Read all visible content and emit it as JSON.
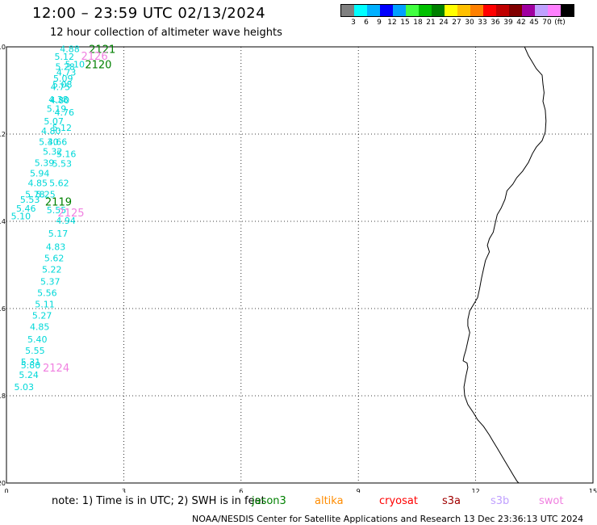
{
  "header": {
    "title": "12:00 – 23:59 UTC 02/13/2024",
    "subtitle": "12 hour collection of altimeter wave heights"
  },
  "legend": {
    "colors": [
      "#808080",
      "#00ffff",
      "#00b0ff",
      "#0000ff",
      "#00a0ff",
      "#40ff40",
      "#00c000",
      "#008000",
      "#ffff00",
      "#ffc000",
      "#ff8000",
      "#ff0000",
      "#c00000",
      "#800000",
      "#a000a0",
      "#c0a0ff",
      "#ff80ff",
      "#000000"
    ],
    "labels": [
      "3",
      "6",
      "9",
      "12",
      "15",
      "18",
      "21",
      "24",
      "27",
      "30",
      "33",
      "36",
      "39",
      "42",
      "45",
      "70",
      "(ft)"
    ]
  },
  "map": {
    "x_ticks": [
      "0",
      "3",
      "6",
      "9",
      "12",
      "15"
    ],
    "y_ticks": [
      "-10",
      "-12",
      "-14",
      "-16",
      "-18",
      "-20"
    ]
  },
  "observations": [
    {
      "lon": 1.62,
      "lat": -10.05,
      "swh": "4.88"
    },
    {
      "lon": 1.48,
      "lat": -10.22,
      "swh": "5.12"
    },
    {
      "lon": 1.75,
      "lat": -10.4,
      "swh": "5.10"
    },
    {
      "lon": 1.5,
      "lat": -10.45,
      "swh": "5.28"
    },
    {
      "lon": 1.53,
      "lat": -10.58,
      "swh": "4.73"
    },
    {
      "lon": 1.45,
      "lat": -10.72,
      "swh": "5.09"
    },
    {
      "lon": 1.43,
      "lat": -10.86,
      "swh": "5.08"
    },
    {
      "lon": 1.38,
      "lat": -10.92,
      "swh": "4.75"
    },
    {
      "lon": 1.33,
      "lat": -11.2,
      "swh": "4.38"
    },
    {
      "lon": 1.36,
      "lat": -11.22,
      "swh": "4.80"
    },
    {
      "lon": 1.28,
      "lat": -11.42,
      "swh": "5.19"
    },
    {
      "lon": 1.48,
      "lat": -11.5,
      "swh": "4.76"
    },
    {
      "lon": 1.21,
      "lat": -11.7,
      "swh": "5.07"
    },
    {
      "lon": 1.42,
      "lat": -11.85,
      "swh": "5.12"
    },
    {
      "lon": 1.14,
      "lat": -11.93,
      "swh": "4.80"
    },
    {
      "lon": 1.08,
      "lat": -12.18,
      "swh": "5.30"
    },
    {
      "lon": 1.3,
      "lat": -12.18,
      "swh": "4.66"
    },
    {
      "lon": 1.18,
      "lat": -12.4,
      "swh": "5.32"
    },
    {
      "lon": 1.53,
      "lat": -12.45,
      "swh": "5.16"
    },
    {
      "lon": 0.97,
      "lat": -12.66,
      "swh": "5.39"
    },
    {
      "lon": 1.42,
      "lat": -12.68,
      "swh": "5.53"
    },
    {
      "lon": 0.85,
      "lat": -12.9,
      "swh": "5.94"
    },
    {
      "lon": 0.8,
      "lat": -13.12,
      "swh": "4.85"
    },
    {
      "lon": 1.35,
      "lat": -13.12,
      "swh": "5.62"
    },
    {
      "lon": 0.73,
      "lat": -13.38,
      "swh": "5.78"
    },
    {
      "lon": 1.0,
      "lat": -13.38,
      "swh": "5.25"
    },
    {
      "lon": 0.6,
      "lat": -13.5,
      "swh": "5.53"
    },
    {
      "lon": 0.5,
      "lat": -13.7,
      "swh": "5.46"
    },
    {
      "lon": 0.37,
      "lat": -13.88,
      "swh": "5.10"
    },
    {
      "lon": 1.28,
      "lat": -13.74,
      "swh": "5.55"
    },
    {
      "lon": 1.52,
      "lat": -13.98,
      "swh": "4.94"
    },
    {
      "lon": 1.32,
      "lat": -14.28,
      "swh": "5.17"
    },
    {
      "lon": 1.26,
      "lat": -14.58,
      "swh": "4.83"
    },
    {
      "lon": 1.22,
      "lat": -14.84,
      "swh": "5.62"
    },
    {
      "lon": 1.16,
      "lat": -15.1,
      "swh": "5.22"
    },
    {
      "lon": 1.12,
      "lat": -15.38,
      "swh": "5.37"
    },
    {
      "lon": 1.04,
      "lat": -15.64,
      "swh": "5.56"
    },
    {
      "lon": 0.98,
      "lat": -15.9,
      "swh": "5.11"
    },
    {
      "lon": 0.91,
      "lat": -16.16,
      "swh": "5.27"
    },
    {
      "lon": 0.85,
      "lat": -16.42,
      "swh": "4.85"
    },
    {
      "lon": 0.79,
      "lat": -16.7,
      "swh": "5.40"
    },
    {
      "lon": 0.73,
      "lat": -16.96,
      "swh": "5.55"
    },
    {
      "lon": 0.62,
      "lat": -17.22,
      "swh": "5.31"
    },
    {
      "lon": 0.62,
      "lat": -17.3,
      "swh": "5.80"
    },
    {
      "lon": 0.57,
      "lat": -17.52,
      "swh": "5.24"
    },
    {
      "lon": 0.45,
      "lat": -17.8,
      "swh": "5.03"
    }
  ],
  "passes": [
    {
      "lon": 2.45,
      "lat": -10.05,
      "label": "2121",
      "color": "#008000"
    },
    {
      "lon": 2.25,
      "lat": -10.2,
      "label": "2126",
      "color": "#f080e0"
    },
    {
      "lon": 2.35,
      "lat": -10.4,
      "label": "2120",
      "color": "#008000"
    },
    {
      "lon": 1.33,
      "lat": -13.55,
      "label": "2119",
      "color": "#008000"
    },
    {
      "lon": 1.65,
      "lat": -13.8,
      "label": "2125",
      "color": "#f080e0"
    },
    {
      "lon": 1.27,
      "lat": -17.35,
      "label": "2124",
      "color": "#f080e0"
    }
  ],
  "coastline": [
    [
      13.25,
      -10.0
    ],
    [
      13.35,
      -10.2
    ],
    [
      13.45,
      -10.35
    ],
    [
      13.55,
      -10.5
    ],
    [
      13.7,
      -10.65
    ],
    [
      13.72,
      -10.85
    ],
    [
      13.75,
      -11.05
    ],
    [
      13.72,
      -11.25
    ],
    [
      13.78,
      -11.45
    ],
    [
      13.8,
      -11.7
    ],
    [
      13.78,
      -11.95
    ],
    [
      13.7,
      -12.15
    ],
    [
      13.55,
      -12.3
    ],
    [
      13.45,
      -12.45
    ],
    [
      13.35,
      -12.65
    ],
    [
      13.2,
      -12.85
    ],
    [
      13.05,
      -13.0
    ],
    [
      12.95,
      -13.15
    ],
    [
      12.8,
      -13.3
    ],
    [
      12.75,
      -13.5
    ],
    [
      12.65,
      -13.7
    ],
    [
      12.55,
      -13.85
    ],
    [
      12.5,
      -14.05
    ],
    [
      12.45,
      -14.25
    ],
    [
      12.35,
      -14.4
    ],
    [
      12.3,
      -14.55
    ],
    [
      12.35,
      -14.7
    ],
    [
      12.25,
      -14.9
    ],
    [
      12.2,
      -15.1
    ],
    [
      12.15,
      -15.3
    ],
    [
      12.1,
      -15.55
    ],
    [
      12.05,
      -15.75
    ],
    [
      11.95,
      -15.9
    ],
    [
      11.85,
      -16.05
    ],
    [
      11.8,
      -16.25
    ],
    [
      11.8,
      -16.4
    ],
    [
      11.85,
      -16.55
    ],
    [
      11.8,
      -16.75
    ],
    [
      11.75,
      -16.95
    ],
    [
      11.7,
      -17.1
    ],
    [
      11.68,
      -17.2
    ],
    [
      11.78,
      -17.25
    ],
    [
      11.8,
      -17.35
    ],
    [
      11.75,
      -17.55
    ],
    [
      11.7,
      -17.8
    ],
    [
      11.72,
      -18.0
    ],
    [
      11.8,
      -18.2
    ],
    [
      11.95,
      -18.4
    ],
    [
      12.05,
      -18.55
    ],
    [
      12.2,
      -18.7
    ],
    [
      12.35,
      -18.9
    ],
    [
      12.45,
      -19.05
    ],
    [
      12.55,
      -19.2
    ],
    [
      12.65,
      -19.35
    ],
    [
      12.75,
      -19.5
    ],
    [
      12.85,
      -19.65
    ],
    [
      12.95,
      -19.8
    ],
    [
      13.05,
      -19.95
    ],
    [
      13.1,
      -20.0
    ]
  ],
  "footer": {
    "note": "note:  1) Time is in UTC;  2) SWH is in feet",
    "missions": [
      {
        "name": "jason3",
        "color": "#008000"
      },
      {
        "name": "altika",
        "color": "#ff8c00"
      },
      {
        "name": "cryosat",
        "color": "#ff0000"
      },
      {
        "name": "s3a",
        "color": "#a00000"
      },
      {
        "name": "s3b",
        "color": "#c0a0ff"
      },
      {
        "name": "swot",
        "color": "#f080e0"
      }
    ],
    "credit": "NOAA/NESDIS Center for Satellite Applications and Research    13 Dec 23:36:13 UTC 2024"
  },
  "colors": {
    "obs_text": "#00d8d8",
    "grid": "#000000"
  }
}
